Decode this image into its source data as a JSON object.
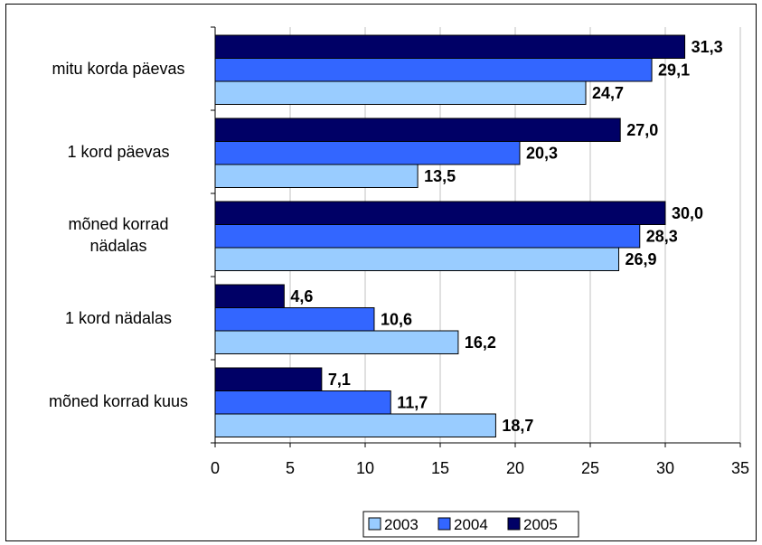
{
  "chart_data": {
    "type": "bar",
    "orientation": "horizontal",
    "categories": [
      [
        "mitu korda päevas"
      ],
      [
        "1 kord päevas"
      ],
      [
        "mõned korrad",
        "nädalas"
      ],
      [
        "1 kord nädalas"
      ],
      [
        "mõned korrad kuus"
      ]
    ],
    "series": [
      {
        "name": "2005",
        "color": "#000066",
        "values": [
          31.3,
          27.0,
          30.0,
          4.6,
          7.1
        ]
      },
      {
        "name": "2004",
        "color": "#3366FF",
        "values": [
          29.1,
          20.3,
          28.3,
          10.6,
          11.7
        ]
      },
      {
        "name": "2003",
        "color": "#99CCFF",
        "values": [
          24.7,
          13.5,
          26.9,
          16.2,
          18.7
        ]
      }
    ],
    "data_labels": [
      [
        "31,3",
        "29,1",
        "24,7"
      ],
      [
        "27,0",
        "20,3",
        "13,5"
      ],
      [
        "30,0",
        "28,3",
        "26,9"
      ],
      [
        "4,6",
        "10,6",
        "16,2"
      ],
      [
        "7,1",
        "11,7",
        "18,7"
      ]
    ],
    "x_ticks": [
      "0",
      "5",
      "10",
      "15",
      "20",
      "25",
      "30",
      "35"
    ],
    "xlim": [
      0,
      35
    ],
    "grid": "vertical",
    "legend": {
      "placement": "bottom",
      "entries": [
        {
          "name": "2003",
          "color": "#99CCFF"
        },
        {
          "name": "2004",
          "color": "#3366FF"
        },
        {
          "name": "2005",
          "color": "#000066"
        }
      ]
    },
    "title": "",
    "xlabel": "",
    "ylabel": ""
  }
}
